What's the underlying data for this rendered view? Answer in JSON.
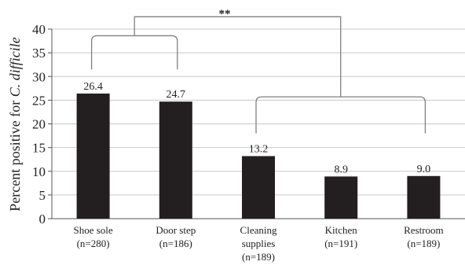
{
  "chart_data": {
    "type": "bar",
    "title": "",
    "ylabel_prefix": "Percent positive for ",
    "ylabel_italic": "C. difficile",
    "xlabel": "",
    "ylim": [
      0,
      40
    ],
    "yticks": [
      0,
      5,
      10,
      15,
      20,
      25,
      30,
      35,
      40
    ],
    "grid": true,
    "categories": [
      [
        "Shoe sole",
        "(n=280)"
      ],
      [
        "Door step",
        "(n=186)"
      ],
      [
        "Cleaning",
        "supplies",
        "(n=189)"
      ],
      [
        "Kitchen",
        "(n=191)"
      ],
      [
        "Restroom",
        "(n=189)"
      ]
    ],
    "values": [
      26.4,
      24.7,
      13.2,
      8.9,
      9.0
    ],
    "value_labels": [
      "26.4",
      "24.7",
      "13.2",
      "8.9",
      "9.0"
    ],
    "bar_color": "#231f20",
    "annotation": "**"
  }
}
